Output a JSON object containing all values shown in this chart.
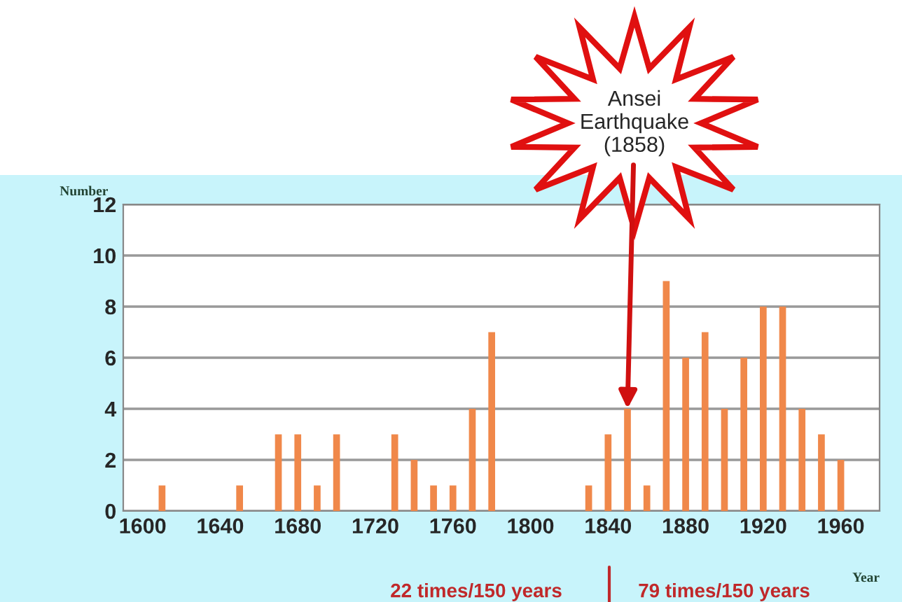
{
  "chart_data": {
    "type": "bar",
    "ylabel": "Number",
    "xlabel": "Year",
    "x": [
      1600,
      1610,
      1620,
      1630,
      1640,
      1650,
      1660,
      1670,
      1680,
      1690,
      1700,
      1710,
      1720,
      1730,
      1740,
      1750,
      1760,
      1770,
      1780,
      1790,
      1800,
      1810,
      1820,
      1830,
      1840,
      1850,
      1860,
      1870,
      1880,
      1890,
      1900,
      1910,
      1920,
      1930,
      1940,
      1950,
      1960,
      1970
    ],
    "values": [
      0,
      1,
      0,
      0,
      0,
      1,
      0,
      3,
      3,
      1,
      3,
      0,
      0,
      3,
      2,
      1,
      1,
      4,
      7,
      0,
      0,
      0,
      0,
      1,
      3,
      4,
      1,
      9,
      6,
      7,
      4,
      6,
      8,
      8,
      4,
      3,
      2,
      0
    ],
    "color": "#f0884a",
    "xlim": [
      1590,
      1980
    ],
    "xticks": [
      1600,
      1640,
      1680,
      1720,
      1760,
      1800,
      1840,
      1880,
      1920,
      1960
    ],
    "ylim": [
      0,
      12
    ],
    "yticks": [
      0,
      2,
      4,
      6,
      8,
      10,
      12
    ],
    "grid": "y",
    "annotations": [
      {
        "text": "Ansei\nEarthquake\n(1858)",
        "x": 1850,
        "y": 4
      },
      "22 times/150 years",
      "79 times/150 years"
    ]
  }
}
